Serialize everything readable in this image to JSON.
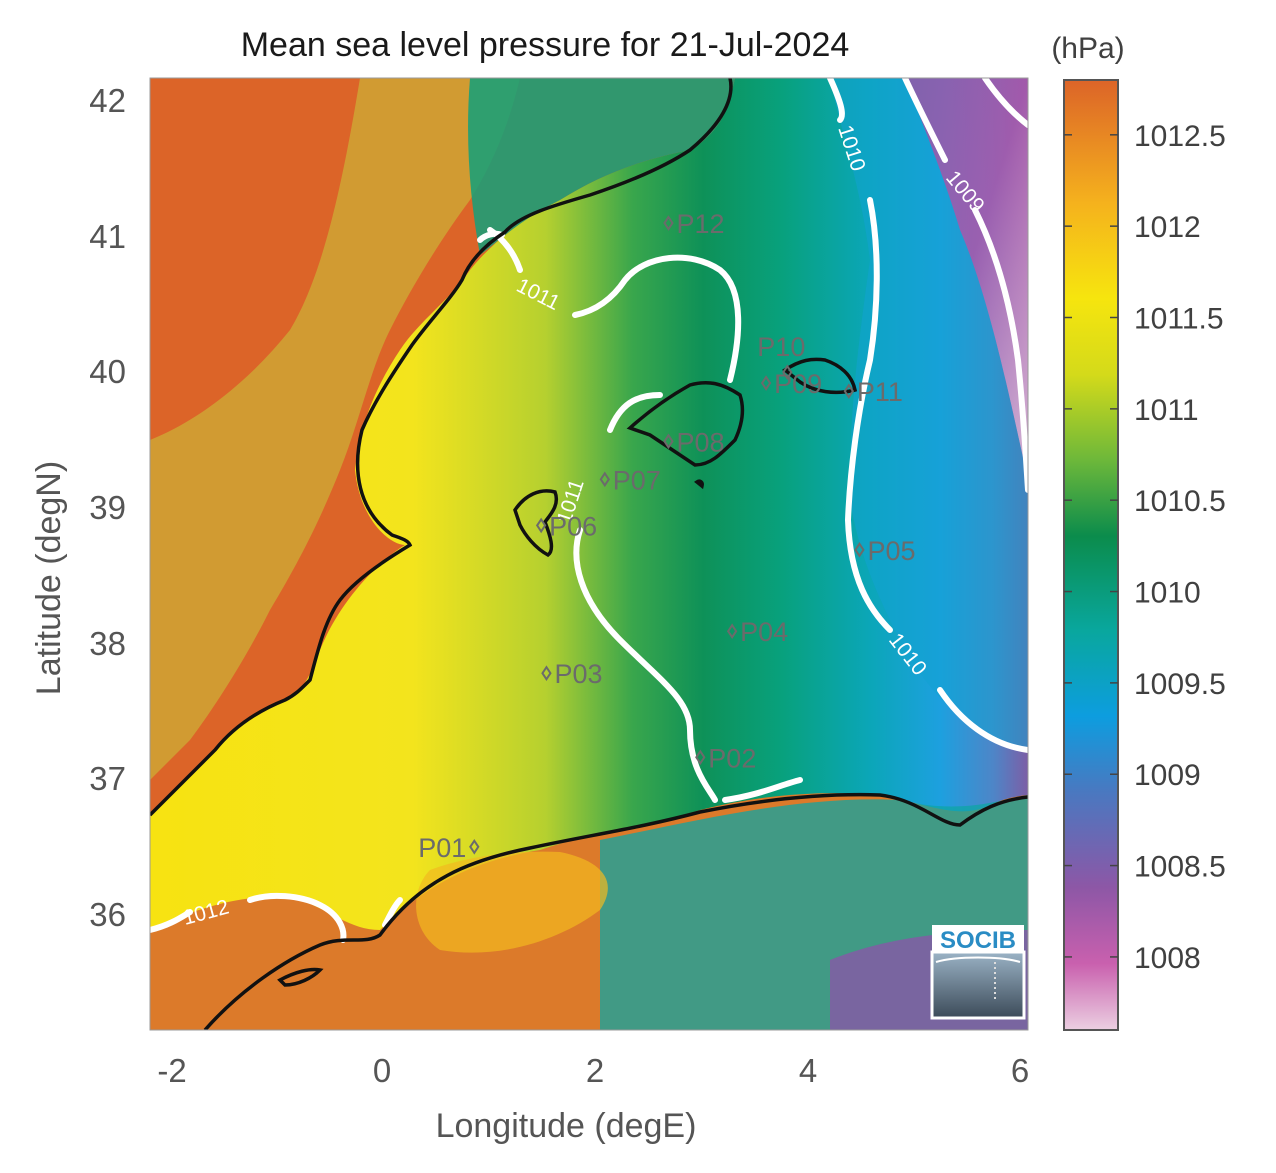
{
  "title": "Mean sea level pressure for 21-Jul-2024",
  "units": "(hPa)",
  "axes": {
    "xlabel": "Longitude (degE)",
    "ylabel": "Latitude (degN)",
    "xticks": [
      "-2",
      "0",
      "2",
      "4",
      "6"
    ],
    "yticks": [
      "42",
      "41",
      "40",
      "39",
      "38",
      "37",
      "36"
    ],
    "xlim": [
      -2.25,
      6.0
    ],
    "ylim": [
      35.2,
      42.2
    ]
  },
  "colorbar": {
    "ticks": [
      "1012.5",
      "1012",
      "1011.5",
      "1011",
      "1010.5",
      "1010",
      "1009.5",
      "1009",
      "1008.5",
      "1008"
    ],
    "range": [
      1007.6,
      1012.8
    ],
    "colors": [
      "#e8c8dc",
      "#c44fa8",
      "#7a57a4",
      "#2d8ddb",
      "#0aa7dd",
      "#07a080",
      "#0b8a4a",
      "#99c631",
      "#f5e50e",
      "#f59a22",
      "#dc6428"
    ]
  },
  "contours": {
    "c1009": "1009",
    "c1010a": "1010",
    "c1010b": "1010",
    "c1011a": "1011",
    "c1011b": "1011",
    "c1012": "1012"
  },
  "stations": [
    {
      "id": "P01",
      "lon": 0.87,
      "lat": 36.5
    },
    {
      "id": "P02",
      "lon": 3.0,
      "lat": 37.16
    },
    {
      "id": "P03",
      "lon": 1.55,
      "lat": 37.78
    },
    {
      "id": "P04",
      "lon": 3.3,
      "lat": 38.09
    },
    {
      "id": "P05",
      "lon": 4.5,
      "lat": 38.69
    },
    {
      "id": "P06",
      "lon": 1.5,
      "lat": 38.87
    },
    {
      "id": "P07",
      "lon": 2.1,
      "lat": 39.21
    },
    {
      "id": "P08",
      "lon": 2.7,
      "lat": 39.49
    },
    {
      "id": "P09",
      "lon": 3.62,
      "lat": 39.92
    },
    {
      "id": "P10",
      "lon": 3.82,
      "lat": 40.0
    },
    {
      "id": "P11",
      "lon": 4.4,
      "lat": 39.86
    },
    {
      "id": "P12",
      "lon": 2.7,
      "lat": 41.1
    }
  ],
  "logo": "SOCIB"
}
